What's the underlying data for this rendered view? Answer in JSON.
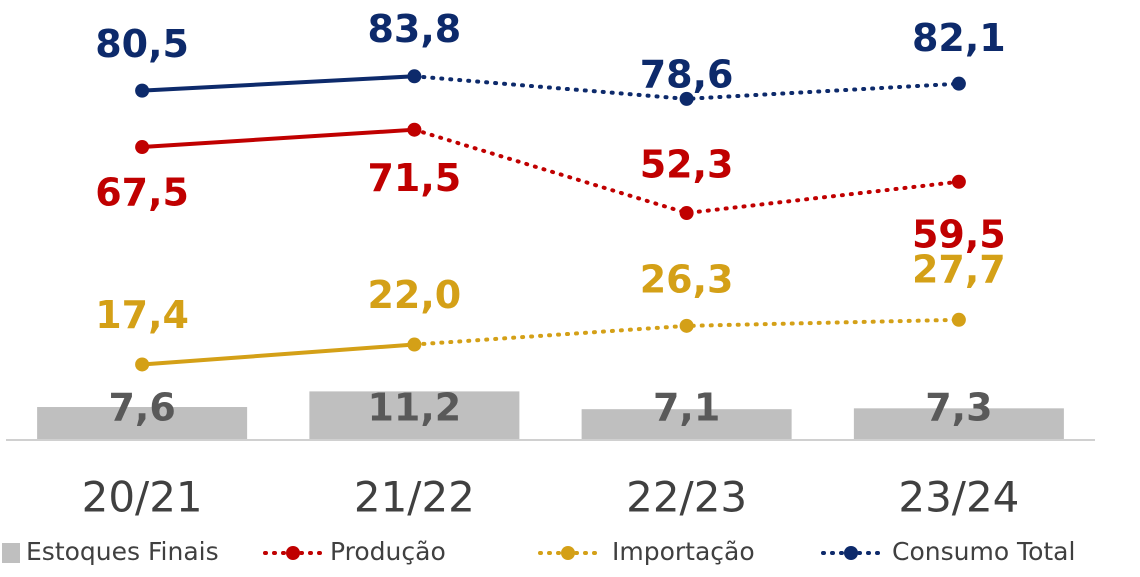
{
  "chart_data": {
    "type": "bar_line",
    "categories": [
      "20/21",
      "21/22",
      "22/23",
      "23/24"
    ],
    "ylim": [
      0,
      100
    ],
    "series": [
      {
        "name": "Estoques Finais",
        "type": "bar",
        "color": "#bfbfbf",
        "label_color": "#595959",
        "values": [
          7.6,
          11.2,
          7.1,
          7.3
        ],
        "value_labels": [
          "7,6",
          "11,2",
          "7,1",
          "7,3"
        ]
      },
      {
        "name": "Produção",
        "type": "line",
        "color": "#c00000",
        "solid_segments": 1,
        "values": [
          67.5,
          71.5,
          52.3,
          59.5
        ],
        "value_labels": [
          "67,5",
          "71,5",
          "52,3",
          "59,5"
        ]
      },
      {
        "name": "Importação",
        "type": "line",
        "color": "#d4a017",
        "solid_segments": 1,
        "values": [
          17.4,
          22.0,
          26.3,
          27.7
        ],
        "value_labels": [
          "17,4",
          "22,0",
          "26,3",
          "27,7"
        ]
      },
      {
        "name": "Consumo Total",
        "type": "line",
        "color": "#0d2a6b",
        "solid_segments": 1,
        "values": [
          80.5,
          83.8,
          78.6,
          82.1
        ],
        "value_labels": [
          "80,5",
          "83,8",
          "78,6",
          "82,1"
        ]
      }
    ]
  }
}
